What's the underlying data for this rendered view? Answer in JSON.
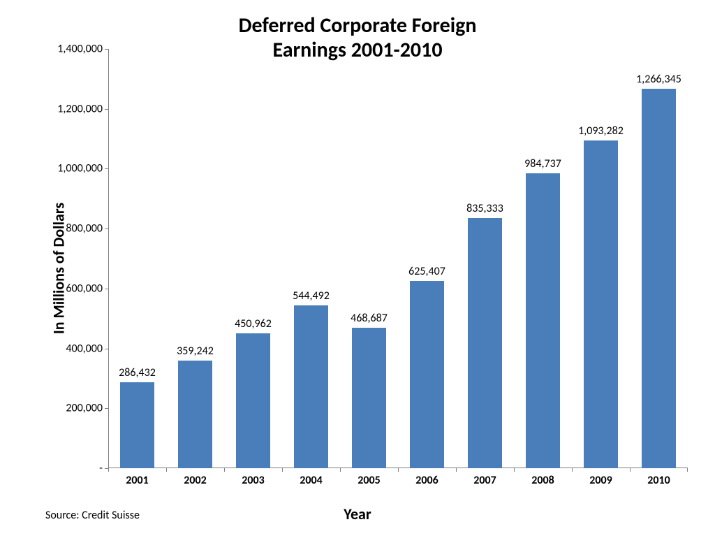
{
  "chart": {
    "type": "bar",
    "title_line1": "Deferred Corporate Foreign",
    "title_line2": "Earnings 2001-2010",
    "title_fontsize": 30,
    "ylabel": "In Millions of Dollars",
    "xlabel": "Year",
    "axis_label_fontsize": 22,
    "source": "Source: Credit Suisse",
    "source_fontsize": 16,
    "categories": [
      "2001",
      "2002",
      "2003",
      "2004",
      "2005",
      "2006",
      "2007",
      "2008",
      "2009",
      "2010"
    ],
    "values": [
      286432,
      359242,
      450962,
      544492,
      468687,
      625407,
      835333,
      984737,
      1093282,
      1266345
    ],
    "value_labels": [
      "286,432",
      "359,242",
      "450,962",
      "544,492",
      "468,687",
      "625,407",
      "835,333",
      "984,737",
      "1,093,282",
      "1,266,345"
    ],
    "bar_color": "#4a7ebb",
    "bar_width": 0.58,
    "ylim": [
      0,
      1400000
    ],
    "ytick_step": 200000,
    "ytick_labels": [
      "-",
      "200,000",
      "400,000",
      "600,000",
      "800,000",
      "1,000,000",
      "1,200,000",
      "1,400,000"
    ],
    "tick_fontsize": 16,
    "xtick_fontsize": 16,
    "data_label_fontsize": 16,
    "background_color": "#ffffff",
    "axis_color": "#808080",
    "text_color": "#000000"
  }
}
